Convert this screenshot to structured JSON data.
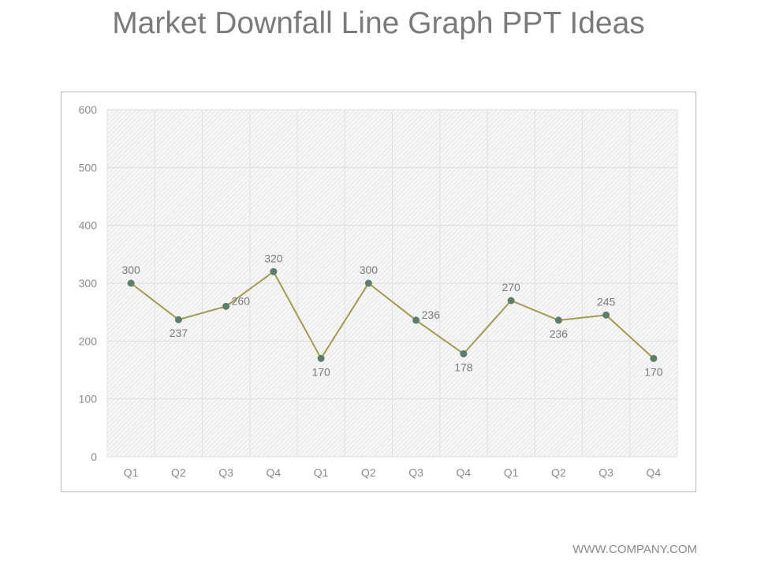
{
  "slide": {
    "title": "Market Downfall Line Graph PPT Ideas",
    "footer": "WWW.COMPANY.COM"
  },
  "chart_data": {
    "type": "line",
    "categories": [
      "Q1",
      "Q2",
      "Q3",
      "Q4",
      "Q1",
      "Q2",
      "Q3",
      "Q4",
      "Q1",
      "Q2",
      "Q3",
      "Q4"
    ],
    "series": [
      {
        "values": [
          300,
          237,
          260,
          320,
          170,
          300,
          236,
          178,
          270,
          236,
          245,
          170
        ],
        "color": "#a39a52",
        "marker_color": "#5e7d6a"
      }
    ],
    "data_labels": [
      "300",
      "237",
      "260",
      "320",
      "170",
      "300",
      "236",
      "178",
      "270",
      "236",
      "245",
      "170"
    ],
    "ylim": [
      0,
      600
    ],
    "yticks": [
      0,
      100,
      200,
      300,
      400,
      500,
      600
    ],
    "grid": true,
    "title": "",
    "xlabel": "",
    "ylabel": ""
  }
}
